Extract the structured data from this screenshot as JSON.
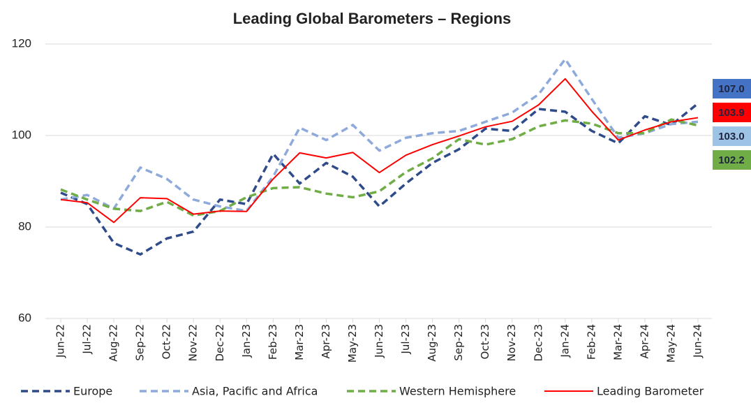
{
  "chart_data": {
    "type": "line",
    "title": "Leading Global Barometers – Regions",
    "categories": [
      "Jun-22",
      "Jul-22",
      "Aug-22",
      "Sep-22",
      "Oct-22",
      "Nov-22",
      "Dec-22",
      "Jan-23",
      "Feb-23",
      "Mar-23",
      "Apr-23",
      "May-23",
      "Jun-23",
      "Jul-23",
      "Aug-23",
      "Sep-23",
      "Oct-23",
      "Nov-23",
      "Dec-23",
      "Jan-24",
      "Feb-24",
      "Mar-24",
      "Apr-24",
      "May-24",
      "Jun-24"
    ],
    "series": [
      {
        "name": "Europe",
        "color": "#2f4b8a",
        "dashed": true,
        "label_color": "#4472c4",
        "values": [
          87.5,
          85,
          76.5,
          74,
          77.5,
          79,
          86,
          85,
          96,
          89.5,
          94,
          91,
          84.5,
          89.5,
          94,
          97,
          101.5,
          101,
          105.8,
          105.2,
          101,
          98.3,
          104.2,
          102.3,
          107.0
        ],
        "value_labels": [
          null,
          null,
          null,
          null,
          null,
          null,
          null,
          null,
          null,
          null,
          null,
          null,
          null,
          null,
          null,
          null,
          null,
          null,
          null,
          null,
          null,
          null,
          null,
          null,
          "107.0"
        ]
      },
      {
        "name": "Asia, Pacific and Africa",
        "color": "#8eaadb",
        "dashed": true,
        "label_color": "#9dc3e6",
        "values": [
          86,
          87,
          84,
          93,
          90.5,
          86,
          84.5,
          83.5,
          91,
          101.7,
          99,
          102.3,
          96.7,
          99.5,
          100.5,
          101,
          103,
          105,
          109,
          116.7,
          108,
          99.5,
          100.5,
          102.5,
          103.0
        ],
        "value_labels": [
          null,
          null,
          null,
          null,
          null,
          null,
          null,
          null,
          null,
          null,
          null,
          null,
          null,
          null,
          null,
          null,
          null,
          null,
          null,
          null,
          null,
          null,
          null,
          null,
          "103.0"
        ]
      },
      {
        "name": "Western Hemisphere",
        "color": "#70ad47",
        "dashed": true,
        "label_color": "#70ad47",
        "values": [
          88.2,
          86,
          84,
          83.5,
          85.5,
          82.5,
          83.5,
          86.5,
          88.5,
          88.7,
          87.3,
          86.5,
          87.8,
          92,
          95,
          99.2,
          98,
          99.2,
          102,
          103.3,
          102.6,
          100.5,
          100.5,
          103.5,
          102.2
        ],
        "value_labels": [
          null,
          null,
          null,
          null,
          null,
          null,
          null,
          null,
          null,
          null,
          null,
          null,
          null,
          null,
          null,
          null,
          null,
          null,
          null,
          null,
          null,
          null,
          null,
          null,
          "102.2"
        ]
      },
      {
        "name": "Leading Barometer",
        "color": "#ff0000",
        "dashed": false,
        "label_color": "#ff0000",
        "values": [
          86,
          85.3,
          81,
          86.4,
          86.2,
          82.8,
          83.5,
          83.4,
          90.5,
          96.2,
          95.1,
          96.3,
          91.9,
          95.7,
          98,
          99.9,
          101.9,
          103.1,
          106.7,
          112.4,
          105.3,
          99,
          101.2,
          103,
          103.9
        ],
        "value_labels": [
          null,
          null,
          null,
          null,
          null,
          null,
          null,
          null,
          null,
          null,
          null,
          null,
          null,
          null,
          null,
          null,
          null,
          null,
          null,
          null,
          null,
          null,
          null,
          null,
          "103.9"
        ]
      }
    ],
    "ylim": [
      60,
      120
    ],
    "yticks": [
      60,
      80,
      100,
      120
    ],
    "grid": true
  }
}
